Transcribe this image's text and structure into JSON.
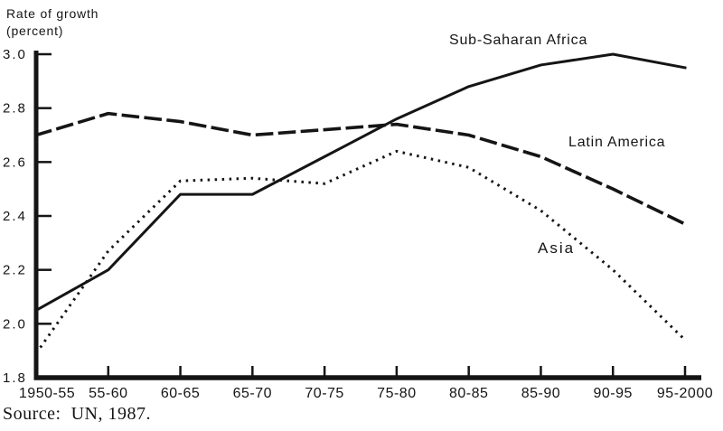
{
  "title": {
    "line1": "Rate of growth",
    "line2": "(percent)"
  },
  "source": "Source:  UN, 1987.",
  "colors": {
    "ink": "#151515",
    "background": "#ffffff"
  },
  "chart_data": {
    "type": "line",
    "title": "",
    "xlabel": "",
    "ylabel": "Rate of growth (percent)",
    "ylim": [
      1.8,
      3.0
    ],
    "yticks": [
      1.8,
      2.0,
      2.2,
      2.4,
      2.6,
      2.8,
      3.0
    ],
    "grid": false,
    "legend_position": "inline-labels",
    "categories": [
      "1950-55",
      "55-60",
      "60-65",
      "65-70",
      "70-75",
      "75-80",
      "80-85",
      "85-90",
      "90-95",
      "95-2000"
    ],
    "series": [
      {
        "name": "Sub-Saharan Africa",
        "line_style": "solid",
        "values": [
          2.05,
          2.2,
          2.48,
          2.48,
          2.62,
          2.76,
          2.88,
          2.96,
          3.0,
          2.95
        ]
      },
      {
        "name": "Latin America",
        "line_style": "dashed",
        "values": [
          2.7,
          2.78,
          2.75,
          2.7,
          2.72,
          2.74,
          2.7,
          2.62,
          2.5,
          2.37
        ]
      },
      {
        "name": "Asia",
        "line_style": "dotted",
        "values": [
          1.89,
          2.27,
          2.53,
          2.54,
          2.52,
          2.64,
          2.58,
          2.42,
          2.2,
          1.94
        ]
      }
    ]
  }
}
